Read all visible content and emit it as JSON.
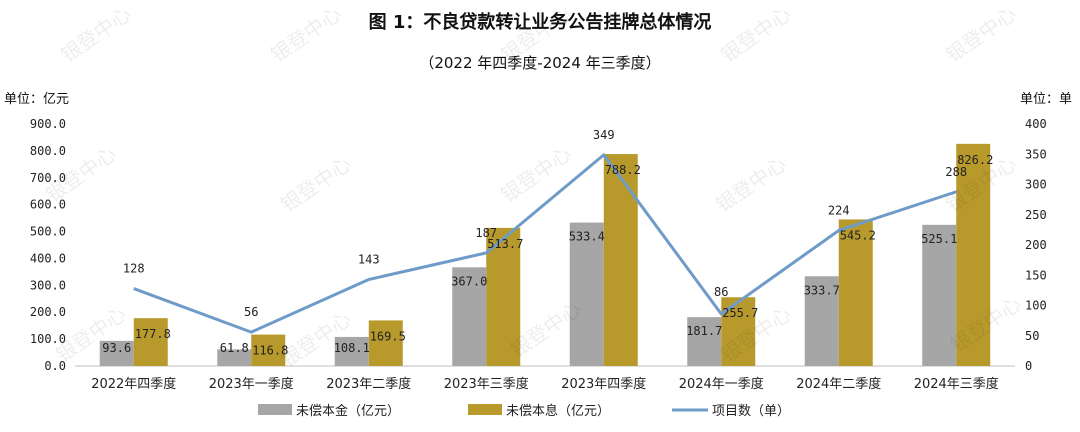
{
  "chart_data": {
    "type": "bar",
    "title": "图 1：不良贷款转让业务公告挂牌总体情况",
    "subtitle": "（2022 年四季度-2024 年三季度）",
    "y_left_unit": "单位：亿元",
    "y_right_unit": "单位：单",
    "categories": [
      "2022年四季度",
      "2023年一季度",
      "2023年二季度",
      "2023年三季度",
      "2023年四季度",
      "2024年一季度",
      "2024年二季度",
      "2024年三季度"
    ],
    "series": [
      {
        "name": "未偿本金（亿元）",
        "type": "bar",
        "axis": "left",
        "color": "#a6a6a6",
        "values": [
          93.6,
          61.8,
          108.1,
          367.0,
          533.4,
          181.7,
          333.7,
          525.1
        ],
        "labels": [
          "93.6",
          "61.8",
          "108.1",
          "367.0",
          "533.4",
          "181.7",
          "333.7",
          "525.1"
        ]
      },
      {
        "name": "未偿本息（亿元）",
        "type": "bar",
        "axis": "left",
        "color": "#b89a2c",
        "values": [
          177.8,
          116.8,
          169.5,
          513.7,
          788.2,
          255.7,
          545.2,
          826.2
        ],
        "labels": [
          "177.8",
          "116.8",
          "169.5",
          "513.7",
          "788.2",
          "255.7",
          "545.2",
          "826.2"
        ]
      },
      {
        "name": "项目数（单）",
        "type": "line",
        "axis": "right",
        "color": "#6f9bc8",
        "values": [
          128,
          56,
          143,
          187,
          349,
          86,
          224,
          288
        ],
        "labels": [
          "128",
          "56",
          "143",
          "187",
          "349",
          "86",
          "224",
          "288"
        ]
      }
    ],
    "y_left": {
      "min": 0,
      "max": 900,
      "ticks": [
        "0.0",
        "100.0",
        "200.0",
        "300.0",
        "400.0",
        "500.0",
        "600.0",
        "700.0",
        "800.0",
        "900.0"
      ]
    },
    "y_right": {
      "min": 0,
      "max": 400,
      "ticks": [
        "0",
        "50",
        "100",
        "150",
        "200",
        "250",
        "300",
        "350",
        "400"
      ]
    },
    "legend_position": "bottom",
    "watermark": "银登中心"
  }
}
